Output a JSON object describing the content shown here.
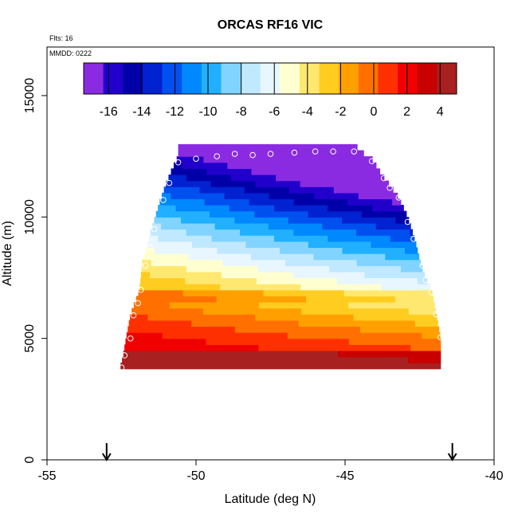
{
  "chart_data": {
    "type": "heatmap",
    "title": "ORCAS RF16 VIC",
    "annotations": {
      "flights": "Flts: 16",
      "date": "MMDD: 0222"
    },
    "xlabel": "Latitude (deg N)",
    "ylabel": "Altitude (m)",
    "xlim": [
      -55,
      -40
    ],
    "ylim": [
      0,
      17000
    ],
    "xticks": [
      -55,
      -50,
      -45,
      -40
    ],
    "yticks": [
      0,
      5000,
      10000,
      15000
    ],
    "colorbar": {
      "range": [
        -17.5,
        5
      ],
      "ticks": [
        -16,
        -14,
        -12,
        -10,
        -8,
        -6,
        -4,
        -2,
        0,
        2,
        4
      ],
      "colors": [
        "#8a2be2",
        "#2200cc",
        "#0000a8",
        "#0022d0",
        "#0050f0",
        "#0088ff",
        "#20b0ff",
        "#80d4ff",
        "#c0e8ff",
        "#e8f6ff",
        "#ffffd0",
        "#ffe870",
        "#ffcc20",
        "#ffa000",
        "#ff7000",
        "#ff3000",
        "#f00000",
        "#c80000",
        "#a82020"
      ]
    },
    "markers_x": [
      -53,
      -41.4
    ],
    "profile_points": [
      {
        "lat": -52.5,
        "alt": 3800
      },
      {
        "lat": -52.4,
        "alt": 4300
      },
      {
        "lat": -52.2,
        "alt": 5000
      },
      {
        "lat": -52.1,
        "alt": 5950
      },
      {
        "lat": -51.95,
        "alt": 6450
      },
      {
        "lat": -51.85,
        "alt": 7000
      },
      {
        "lat": -51.7,
        "alt": 8000
      },
      {
        "lat": -51.55,
        "alt": 8750
      },
      {
        "lat": -51.4,
        "alt": 9500
      },
      {
        "lat": -51.1,
        "alt": 10700
      },
      {
        "lat": -50.9,
        "alt": 11400
      },
      {
        "lat": -50.6,
        "alt": 12250
      },
      {
        "lat": -50,
        "alt": 12400
      },
      {
        "lat": -49.3,
        "alt": 12500
      },
      {
        "lat": -48.7,
        "alt": 12600
      },
      {
        "lat": -48.1,
        "alt": 12550
      },
      {
        "lat": -47.5,
        "alt": 12600
      },
      {
        "lat": -46.7,
        "alt": 12650
      },
      {
        "lat": -46,
        "alt": 12700
      },
      {
        "lat": -45.4,
        "alt": 12700
      },
      {
        "lat": -44.7,
        "alt": 12700
      },
      {
        "lat": -44.1,
        "alt": 12300
      },
      {
        "lat": -43.7,
        "alt": 11600
      },
      {
        "lat": -43.5,
        "alt": 11200
      },
      {
        "lat": -43.2,
        "alt": 10800
      },
      {
        "lat": -42.9,
        "alt": 9800
      },
      {
        "lat": -42.7,
        "alt": 9100
      },
      {
        "lat": -42.4,
        "alt": 8000
      },
      {
        "lat": -42.3,
        "alt": 7400
      },
      {
        "lat": -42.1,
        "alt": 6900
      },
      {
        "lat": -41.95,
        "alt": 6000
      },
      {
        "lat": -41.8,
        "alt": 5050
      }
    ],
    "field_outline": {
      "left": [
        [
          3800,
          -52.55
        ],
        [
          4300,
          -52.45
        ],
        [
          5000,
          -52.35
        ],
        [
          6000,
          -52.2
        ],
        [
          6500,
          -52.05
        ],
        [
          7000,
          -51.9
        ],
        [
          8200,
          -51.8
        ],
        [
          8800,
          -51.65
        ],
        [
          9500,
          -51.5
        ],
        [
          10700,
          -51.2
        ],
        [
          11400,
          -51.0
        ],
        [
          12000,
          -50.8
        ],
        [
          12500,
          -50.6
        ]
      ],
      "right": [
        [
          3800,
          -41.8
        ],
        [
          4300,
          -41.8
        ],
        [
          5000,
          -41.8
        ],
        [
          6000,
          -41.95
        ],
        [
          7000,
          -42.1
        ],
        [
          7500,
          -42.3
        ],
        [
          8000,
          -42.45
        ],
        [
          9000,
          -42.65
        ],
        [
          10000,
          -42.9
        ],
        [
          10800,
          -43.2
        ],
        [
          11300,
          -43.5
        ],
        [
          11800,
          -43.8
        ],
        [
          12400,
          -44.1
        ],
        [
          12800,
          -44.6
        ]
      ]
    }
  }
}
